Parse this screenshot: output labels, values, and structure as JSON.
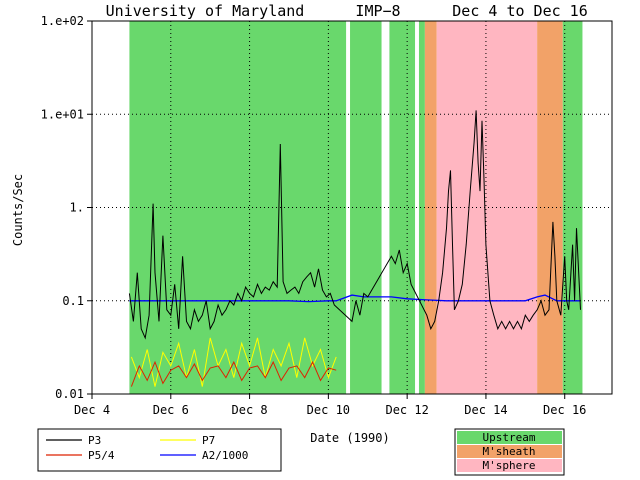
{
  "title": {
    "institution": "University of Maryland",
    "mission": "IMP−8",
    "dates": "Dec 4 to Dec 16"
  },
  "chart_data": {
    "type": "line",
    "title": "University of Maryland   IMP−8   Dec 4 to Dec 16",
    "xlabel": "Date (1990)",
    "ylabel": "Counts/Sec",
    "yscale": "log",
    "ylim": [
      0.01,
      100
    ],
    "xlim_days": [
      4,
      17.2
    ],
    "grid": true,
    "x_ticks": [
      {
        "day": 4,
        "label": "Dec 4"
      },
      {
        "day": 6,
        "label": "Dec 6"
      },
      {
        "day": 8,
        "label": "Dec 8"
      },
      {
        "day": 10,
        "label": "Dec 10"
      },
      {
        "day": 12,
        "label": "Dec 12"
      },
      {
        "day": 14,
        "label": "Dec 14"
      },
      {
        "day": 16,
        "label": "Dec 16"
      }
    ],
    "y_ticks": [
      {
        "value": 100,
        "label": "1.e+02"
      },
      {
        "value": 10,
        "label": "1.e+01"
      },
      {
        "value": 1,
        "label": "1."
      },
      {
        "value": 0.1,
        "label": "0.1"
      },
      {
        "value": 0.01,
        "label": "0.01"
      }
    ],
    "regions": [
      {
        "start": 4.95,
        "end": 12.45,
        "name": "Upstream",
        "color": "#69d86c"
      },
      {
        "start": 12.45,
        "end": 12.75,
        "name": "M'sheath",
        "color": "#f2a268"
      },
      {
        "start": 12.75,
        "end": 15.3,
        "name": "M'sphere",
        "color": "#ffb6c1"
      },
      {
        "start": 15.3,
        "end": 15.95,
        "name": "M'sheath",
        "color": "#f2a268"
      },
      {
        "start": 15.95,
        "end": 16.45,
        "name": "Upstream",
        "color": "#69d86c"
      }
    ],
    "data_gaps": [
      {
        "start": 10.45,
        "end": 10.55
      },
      {
        "start": 11.35,
        "end": 11.55
      },
      {
        "start": 12.2,
        "end": 12.3
      }
    ],
    "series": [
      {
        "name": "P3",
        "color": "#000000",
        "points": [
          [
            4.95,
            0.12
          ],
          [
            5.05,
            0.06
          ],
          [
            5.15,
            0.2
          ],
          [
            5.25,
            0.05
          ],
          [
            5.35,
            0.04
          ],
          [
            5.45,
            0.07
          ],
          [
            5.55,
            1.1
          ],
          [
            5.6,
            0.2
          ],
          [
            5.7,
            0.06
          ],
          [
            5.8,
            0.5
          ],
          [
            5.9,
            0.08
          ],
          [
            6.0,
            0.07
          ],
          [
            6.1,
            0.15
          ],
          [
            6.2,
            0.05
          ],
          [
            6.3,
            0.3
          ],
          [
            6.4,
            0.06
          ],
          [
            6.5,
            0.05
          ],
          [
            6.6,
            0.08
          ],
          [
            6.7,
            0.06
          ],
          [
            6.8,
            0.07
          ],
          [
            6.9,
            0.1
          ],
          [
            7.0,
            0.05
          ],
          [
            7.1,
            0.06
          ],
          [
            7.2,
            0.09
          ],
          [
            7.3,
            0.07
          ],
          [
            7.4,
            0.08
          ],
          [
            7.5,
            0.1
          ],
          [
            7.6,
            0.09
          ],
          [
            7.7,
            0.12
          ],
          [
            7.8,
            0.1
          ],
          [
            7.9,
            0.14
          ],
          [
            8.0,
            0.12
          ],
          [
            8.1,
            0.11
          ],
          [
            8.2,
            0.15
          ],
          [
            8.3,
            0.12
          ],
          [
            8.4,
            0.14
          ],
          [
            8.5,
            0.13
          ],
          [
            8.6,
            0.16
          ],
          [
            8.7,
            0.14
          ],
          [
            8.78,
            4.8
          ],
          [
            8.85,
            0.16
          ],
          [
            8.95,
            0.12
          ],
          [
            9.05,
            0.13
          ],
          [
            9.15,
            0.14
          ],
          [
            9.25,
            0.12
          ],
          [
            9.35,
            0.16
          ],
          [
            9.45,
            0.18
          ],
          [
            9.55,
            0.2
          ],
          [
            9.65,
            0.14
          ],
          [
            9.75,
            0.22
          ],
          [
            9.85,
            0.13
          ],
          [
            9.95,
            0.11
          ],
          [
            10.05,
            0.12
          ],
          [
            10.15,
            0.09
          ],
          [
            10.6,
            0.06
          ],
          [
            10.7,
            0.1
          ],
          [
            10.8,
            0.07
          ],
          [
            10.9,
            0.12
          ],
          [
            11.0,
            0.11
          ],
          [
            11.6,
            0.3
          ],
          [
            11.7,
            0.25
          ],
          [
            11.8,
            0.35
          ],
          [
            11.9,
            0.2
          ],
          [
            12.0,
            0.25
          ],
          [
            12.1,
            0.15
          ],
          [
            12.5,
            0.07
          ],
          [
            12.6,
            0.05
          ],
          [
            12.7,
            0.06
          ],
          [
            12.8,
            0.1
          ],
          [
            12.9,
            0.2
          ],
          [
            13.0,
            0.6
          ],
          [
            13.05,
            1.5
          ],
          [
            13.1,
            2.5
          ],
          [
            13.15,
            0.4
          ],
          [
            13.2,
            0.08
          ],
          [
            13.3,
            0.1
          ],
          [
            13.4,
            0.15
          ],
          [
            13.5,
            0.4
          ],
          [
            13.6,
            1.5
          ],
          [
            13.7,
            5.0
          ],
          [
            13.75,
            11
          ],
          [
            13.8,
            3.0
          ],
          [
            13.85,
            1.5
          ],
          [
            13.9,
            8.5
          ],
          [
            13.95,
            2.0
          ],
          [
            14.0,
            0.4
          ],
          [
            14.1,
            0.1
          ],
          [
            14.2,
            0.07
          ],
          [
            14.3,
            0.05
          ],
          [
            14.4,
            0.06
          ],
          [
            14.5,
            0.05
          ],
          [
            14.6,
            0.06
          ],
          [
            14.7,
            0.05
          ],
          [
            14.8,
            0.06
          ],
          [
            14.9,
            0.05
          ],
          [
            15.0,
            0.07
          ],
          [
            15.1,
            0.06
          ],
          [
            15.2,
            0.07
          ],
          [
            15.3,
            0.08
          ],
          [
            15.4,
            0.1
          ],
          [
            15.5,
            0.07
          ],
          [
            15.6,
            0.08
          ],
          [
            15.7,
            0.7
          ],
          [
            15.75,
            0.3
          ],
          [
            15.8,
            0.1
          ],
          [
            15.9,
            0.07
          ],
          [
            16.0,
            0.3
          ],
          [
            16.05,
            0.1
          ],
          [
            16.1,
            0.08
          ],
          [
            16.2,
            0.4
          ],
          [
            16.25,
            0.1
          ],
          [
            16.3,
            0.6
          ],
          [
            16.4,
            0.08
          ]
        ]
      },
      {
        "name": "P5/4",
        "color": "#dd2200",
        "points": [
          [
            5.0,
            0.012
          ],
          [
            5.2,
            0.02
          ],
          [
            5.4,
            0.014
          ],
          [
            5.6,
            0.022
          ],
          [
            5.8,
            0.013
          ],
          [
            6.0,
            0.018
          ],
          [
            6.2,
            0.02
          ],
          [
            6.4,
            0.015
          ],
          [
            6.6,
            0.021
          ],
          [
            6.8,
            0.014
          ],
          [
            7.0,
            0.019
          ],
          [
            7.2,
            0.02
          ],
          [
            7.4,
            0.015
          ],
          [
            7.6,
            0.022
          ],
          [
            7.8,
            0.014
          ],
          [
            8.0,
            0.019
          ],
          [
            8.2,
            0.02
          ],
          [
            8.4,
            0.015
          ],
          [
            8.6,
            0.022
          ],
          [
            8.8,
            0.014
          ],
          [
            9.0,
            0.019
          ],
          [
            9.2,
            0.02
          ],
          [
            9.4,
            0.015
          ],
          [
            9.6,
            0.022
          ],
          [
            9.8,
            0.014
          ],
          [
            10.0,
            0.019
          ],
          [
            10.2,
            0.018
          ]
        ]
      },
      {
        "name": "P7",
        "color": "#ffff00",
        "points": [
          [
            5.0,
            0.025
          ],
          [
            5.2,
            0.015
          ],
          [
            5.4,
            0.03
          ],
          [
            5.6,
            0.012
          ],
          [
            5.8,
            0.028
          ],
          [
            6.0,
            0.02
          ],
          [
            6.2,
            0.035
          ],
          [
            6.4,
            0.015
          ],
          [
            6.6,
            0.03
          ],
          [
            6.8,
            0.012
          ],
          [
            7.0,
            0.04
          ],
          [
            7.2,
            0.02
          ],
          [
            7.4,
            0.03
          ],
          [
            7.6,
            0.015
          ],
          [
            7.8,
            0.035
          ],
          [
            8.0,
            0.02
          ],
          [
            8.2,
            0.04
          ],
          [
            8.4,
            0.015
          ],
          [
            8.6,
            0.03
          ],
          [
            8.8,
            0.02
          ],
          [
            9.0,
            0.035
          ],
          [
            9.2,
            0.015
          ],
          [
            9.4,
            0.04
          ],
          [
            9.6,
            0.02
          ],
          [
            9.8,
            0.03
          ],
          [
            10.0,
            0.015
          ],
          [
            10.2,
            0.025
          ]
        ]
      },
      {
        "name": "A2/1000",
        "color": "#0000ff",
        "points": [
          [
            4.95,
            0.1
          ],
          [
            6.0,
            0.1
          ],
          [
            7.0,
            0.1
          ],
          [
            8.0,
            0.1
          ],
          [
            9.0,
            0.1
          ],
          [
            9.5,
            0.098
          ],
          [
            10.0,
            0.1
          ],
          [
            10.2,
            0.1
          ],
          [
            10.6,
            0.115
          ],
          [
            10.9,
            0.11
          ],
          [
            11.6,
            0.11
          ],
          [
            12.0,
            0.105
          ],
          [
            12.5,
            0.102
          ],
          [
            13.0,
            0.1
          ],
          [
            14.0,
            0.1
          ],
          [
            15.0,
            0.1
          ],
          [
            15.3,
            0.11
          ],
          [
            15.5,
            0.115
          ],
          [
            15.8,
            0.1
          ],
          [
            16.4,
            0.1
          ]
        ]
      }
    ],
    "legend": {
      "lines": [
        {
          "name": "P3",
          "color": "#000000"
        },
        {
          "name": "P7",
          "color": "#ffff00"
        },
        {
          "name": "P5/4",
          "color": "#dd2200"
        },
        {
          "name": "A2/1000",
          "color": "#0000ff"
        }
      ],
      "regions": [
        {
          "name": "Upstream",
          "color": "#69d86c"
        },
        {
          "name": "M'sheath",
          "color": "#f2a268"
        },
        {
          "name": "M'sphere",
          "color": "#ffb6c1"
        }
      ]
    }
  }
}
